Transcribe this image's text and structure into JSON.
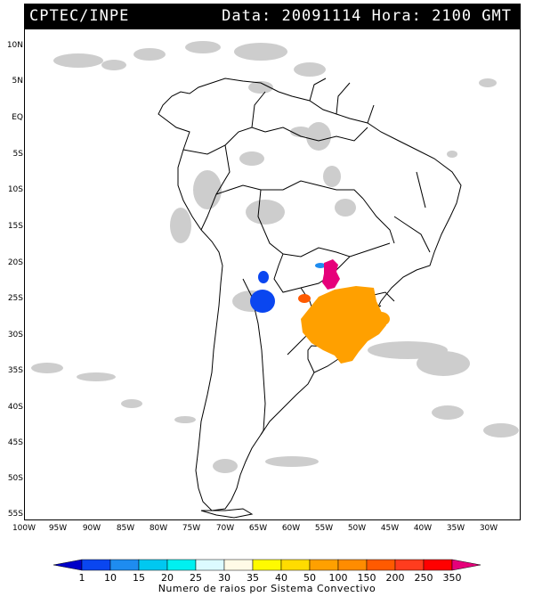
{
  "header": {
    "source": "CPTEC/INPE",
    "data_label": "Data:",
    "date": "20091114",
    "hora_label": "Hora:",
    "time": "2100 GMT"
  },
  "lat_labels": [
    "10N",
    "5N",
    "EQ",
    "5S",
    "10S",
    "15S",
    "20S",
    "25S",
    "30S",
    "35S",
    "40S",
    "45S",
    "50S",
    "55S"
  ],
  "lon_labels": [
    "100W",
    "95W",
    "90W",
    "85W",
    "80W",
    "75W",
    "70W",
    "65W",
    "60W",
    "55W",
    "50W",
    "45W",
    "40W",
    "35W",
    "30W"
  ],
  "colorbar": {
    "title": "Numero de raios por Sistema Convectivo",
    "labels": [
      "1",
      "10",
      "15",
      "20",
      "25",
      "30",
      "35",
      "40",
      "50",
      "100",
      "150",
      "200",
      "250",
      "350"
    ],
    "colors": [
      "#0000c8",
      "#0a46f0",
      "#1e8cf0",
      "#00c8f0",
      "#00f0f0",
      "#dcfaff",
      "#fffae6",
      "#fffa00",
      "#ffdc00",
      "#ffa000",
      "#ff8c00",
      "#ff5a00",
      "#ff3c1e",
      "#ff0000",
      "#e6007a"
    ]
  },
  "storm_colors": {
    "blue": "#0a46f0",
    "magenta": "#e6007a",
    "orange": "#ffa000",
    "red_orange": "#ff5a00",
    "cyan": "#1e8cf0"
  }
}
